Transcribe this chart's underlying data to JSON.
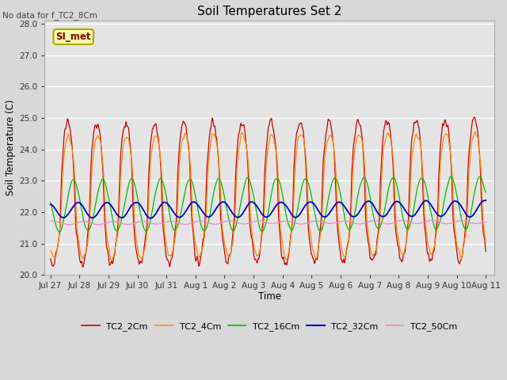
{
  "title": "Soil Temperatures Set 2",
  "subtitle": "No data for f_TC2_8Cm",
  "xlabel": "Time",
  "ylabel": "Soil Temperature (C)",
  "ylim": [
    20.0,
    28.1
  ],
  "yticks": [
    20.0,
    21.0,
    22.0,
    23.0,
    24.0,
    25.0,
    26.0,
    27.0,
    28.0
  ],
  "bg_color": "#e0e0e0",
  "plot_bg_color": "#e8e8e8",
  "grid_color": "white",
  "series_colors": {
    "TC2_2Cm": "#cc0000",
    "TC2_4Cm": "#ff8800",
    "TC2_16Cm": "#00bb00",
    "TC2_32Cm": "#0000cc",
    "TC2_50Cm": "#ee88cc"
  },
  "annotation_label": "SI_met",
  "x_tick_labels": [
    "Jul 27",
    "Jul 28",
    "Jul 29",
    "Jul 30",
    "Jul 31",
    "Aug 1",
    "Aug 2",
    "Aug 3",
    "Aug 4",
    "Aug 5",
    "Aug 6",
    "Aug 7",
    "Aug 8",
    "Aug 9",
    "Aug 10",
    "Aug 11"
  ],
  "num_points": 1440,
  "start_day": 0,
  "end_day": 15.0
}
